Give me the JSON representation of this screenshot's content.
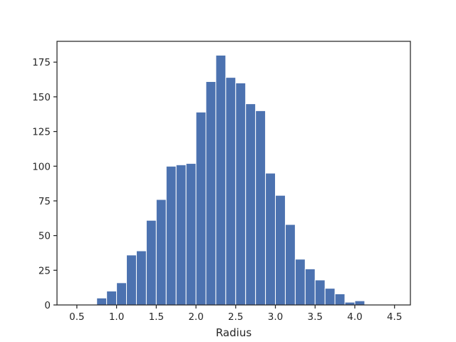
{
  "chart_data": {
    "type": "bar",
    "xlabel": "Radius",
    "ylabel": "",
    "title": "",
    "xlim": [
      0.25,
      4.7
    ],
    "ylim": [
      0,
      190
    ],
    "xticks": [
      0.5,
      1.0,
      1.5,
      2.0,
      2.5,
      3.0,
      3.5,
      4.0,
      4.5
    ],
    "yticks": [
      0,
      25,
      50,
      75,
      100,
      125,
      150,
      175
    ],
    "xtick_labels": [
      "0.5",
      "1.0",
      "1.5",
      "2.0",
      "2.5",
      "3.0",
      "3.5",
      "4.0",
      "4.5"
    ],
    "ytick_labels": [
      "0",
      "25",
      "50",
      "75",
      "100",
      "125",
      "150",
      "175"
    ],
    "grid": false,
    "bar_color": "#4c72b0",
    "bins": [
      {
        "x0": 0.75,
        "x1": 0.875,
        "count": 5
      },
      {
        "x0": 0.875,
        "x1": 1.0,
        "count": 10
      },
      {
        "x0": 1.0,
        "x1": 1.125,
        "count": 16
      },
      {
        "x0": 1.125,
        "x1": 1.25,
        "count": 36
      },
      {
        "x0": 1.25,
        "x1": 1.375,
        "count": 39
      },
      {
        "x0": 1.375,
        "x1": 1.5,
        "count": 61
      },
      {
        "x0": 1.5,
        "x1": 1.625,
        "count": 76
      },
      {
        "x0": 1.625,
        "x1": 1.75,
        "count": 100
      },
      {
        "x0": 1.75,
        "x1": 1.875,
        "count": 101
      },
      {
        "x0": 1.875,
        "x1": 2.0,
        "count": 102
      },
      {
        "x0": 2.0,
        "x1": 2.125,
        "count": 139
      },
      {
        "x0": 2.125,
        "x1": 2.25,
        "count": 161
      },
      {
        "x0": 2.25,
        "x1": 2.375,
        "count": 180
      },
      {
        "x0": 2.375,
        "x1": 2.5,
        "count": 164
      },
      {
        "x0": 2.5,
        "x1": 2.625,
        "count": 160
      },
      {
        "x0": 2.625,
        "x1": 2.75,
        "count": 145
      },
      {
        "x0": 2.75,
        "x1": 2.875,
        "count": 140
      },
      {
        "x0": 2.875,
        "x1": 3.0,
        "count": 95
      },
      {
        "x0": 3.0,
        "x1": 3.125,
        "count": 79
      },
      {
        "x0": 3.125,
        "x1": 3.25,
        "count": 58
      },
      {
        "x0": 3.25,
        "x1": 3.375,
        "count": 33
      },
      {
        "x0": 3.375,
        "x1": 3.5,
        "count": 26
      },
      {
        "x0": 3.5,
        "x1": 3.625,
        "count": 18
      },
      {
        "x0": 3.625,
        "x1": 3.75,
        "count": 12
      },
      {
        "x0": 3.75,
        "x1": 3.875,
        "count": 8
      },
      {
        "x0": 3.875,
        "x1": 4.0,
        "count": 2
      },
      {
        "x0": 4.0,
        "x1": 4.125,
        "count": 3
      }
    ]
  }
}
